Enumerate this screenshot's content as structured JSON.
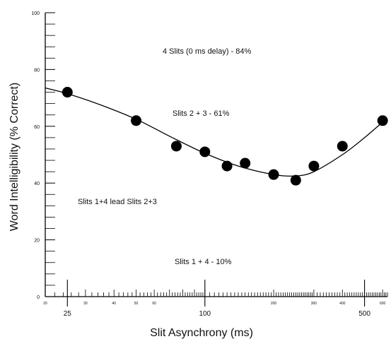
{
  "chart_data": {
    "type": "scatter",
    "xlabel": "Slit Asynchrony (ms)",
    "ylabel": "Word Intelligibility (% Correct)",
    "x_scale": "log",
    "xlim": [
      20,
      630
    ],
    "ylim": [
      0,
      100
    ],
    "grid": false,
    "y_ticks": [
      "0",
      "20",
      "40",
      "60",
      "80",
      "100"
    ],
    "x_major_ticks": [
      {
        "value": 25,
        "label": "25"
      },
      {
        "value": 100,
        "label": "100"
      },
      {
        "value": 500,
        "label": "500"
      }
    ],
    "x_minor_labels": [
      {
        "value": 20,
        "label": "20"
      },
      {
        "value": 30,
        "label": "30"
      },
      {
        "value": 40,
        "label": "40"
      },
      {
        "value": 50,
        "label": "50"
      },
      {
        "value": 60,
        "label": "60"
      },
      {
        "value": 200,
        "label": "200"
      },
      {
        "value": 300,
        "label": "300"
      },
      {
        "value": 400,
        "label": "400"
      },
      {
        "value": 600,
        "label": "600"
      }
    ],
    "points": [
      {
        "x": 25,
        "y": 72
      },
      {
        "x": 50,
        "y": 62
      },
      {
        "x": 75,
        "y": 53
      },
      {
        "x": 100,
        "y": 51
      },
      {
        "x": 125,
        "y": 46
      },
      {
        "x": 150,
        "y": 47
      },
      {
        "x": 200,
        "y": 43
      },
      {
        "x": 250,
        "y": 41
      },
      {
        "x": 300,
        "y": 46
      },
      {
        "x": 400,
        "y": 53
      },
      {
        "x": 600,
        "y": 62
      }
    ],
    "fit_curve": [
      {
        "x": 20,
        "y": 73.5
      },
      {
        "x": 25,
        "y": 71.5
      },
      {
        "x": 35,
        "y": 67.5
      },
      {
        "x": 50,
        "y": 62.5
      },
      {
        "x": 70,
        "y": 56.5
      },
      {
        "x": 100,
        "y": 50.5
      },
      {
        "x": 140,
        "y": 46
      },
      {
        "x": 200,
        "y": 43
      },
      {
        "x": 250,
        "y": 42.5
      },
      {
        "x": 300,
        "y": 44
      },
      {
        "x": 400,
        "y": 50
      },
      {
        "x": 500,
        "y": 56
      },
      {
        "x": 600,
        "y": 61.5
      }
    ],
    "annotations": [
      "4 Slits (0 ms delay) - 84%",
      "Slits 2 + 3 - 61%",
      "Slits 1+4 lead Slits 2+3",
      "Slits 1 + 4 - 10%"
    ],
    "colors": {
      "marker": "#000000",
      "line": "#000000",
      "axis": "#000000"
    }
  }
}
